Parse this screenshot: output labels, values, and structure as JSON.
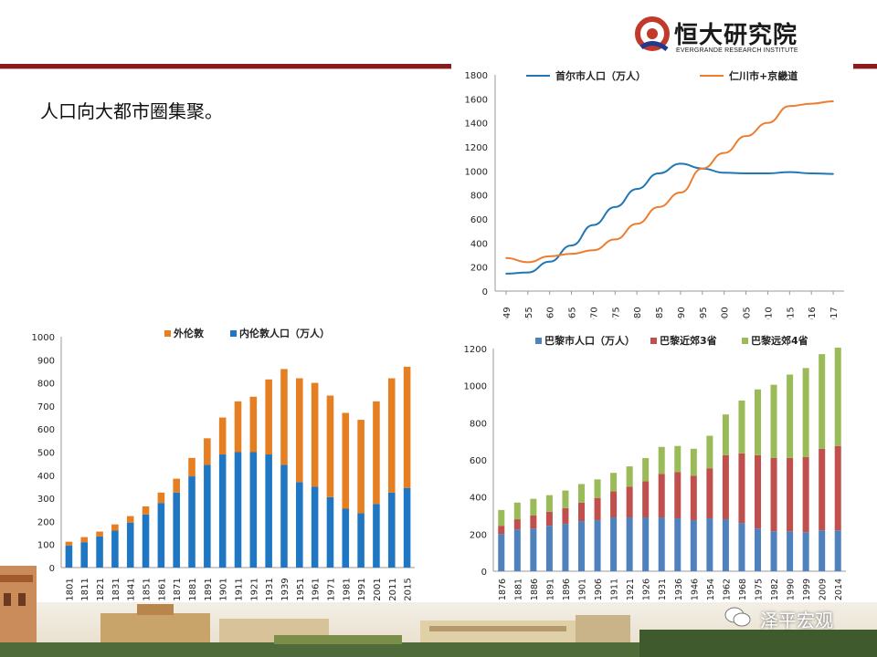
{
  "header": {
    "logo_cn": "恒大研究院",
    "logo_en": "EVERGRANDE RESEARCH INSTITUTE",
    "headline": "人口向大都市圈集聚。"
  },
  "colors": {
    "brand_red": "#8b1a1a",
    "blue": "#1f77b4",
    "orange": "#ed7d31",
    "bar_blue": "#1f77c3",
    "bar_orange": "#e67e22",
    "paris_blue": "#4f81bd",
    "paris_red": "#c0504d",
    "paris_green": "#9bbb59"
  },
  "watermark": {
    "text": "泽平宏观",
    "icon": "wechat-icon"
  },
  "chart_data": [
    {
      "id": "seoul",
      "type": "line",
      "x": [
        "1949",
        "1955",
        "1960",
        "1965",
        "1970",
        "1975",
        "1980",
        "1985",
        "1990",
        "1995",
        "2000",
        "2005",
        "2010",
        "2015",
        "2016",
        "2017"
      ],
      "ylim": [
        0,
        1800
      ],
      "yticks": [
        0,
        200,
        400,
        600,
        800,
        1000,
        1200,
        1400,
        1600,
        1800
      ],
      "legend": "top",
      "series": [
        {
          "name": "首尔市人口（万人）",
          "color": "#1f77b4",
          "values": [
            145,
            155,
            245,
            380,
            550,
            700,
            850,
            980,
            1060,
            1020,
            985,
            980,
            980,
            990,
            980,
            975
          ]
        },
        {
          "name": "仁川市+京畿道",
          "color": "#ed7d31",
          "values": [
            275,
            240,
            290,
            310,
            340,
            430,
            560,
            700,
            820,
            1020,
            1150,
            1290,
            1400,
            1540,
            1560,
            1580
          ]
        }
      ]
    },
    {
      "id": "london",
      "type": "bar",
      "stacked": true,
      "categories": [
        "1801",
        "1811",
        "1821",
        "1831",
        "1841",
        "1851",
        "1861",
        "1871",
        "1881",
        "1891",
        "1901",
        "1911",
        "1921",
        "1931",
        "1939",
        "1951",
        "1961",
        "1971",
        "1981",
        "1991",
        "2001",
        "2011",
        "2015"
      ],
      "ylim": [
        0,
        1000
      ],
      "yticks": [
        0,
        100,
        200,
        300,
        400,
        500,
        600,
        700,
        800,
        900,
        1000
      ],
      "legend": "top",
      "series": [
        {
          "name": "内伦敦人口（万人）",
          "color": "#1f77c3",
          "values": [
            96,
            110,
            135,
            160,
            195,
            230,
            280,
            325,
            395,
            445,
            490,
            500,
            500,
            490,
            445,
            370,
            350,
            305,
            255,
            235,
            275,
            325,
            345
          ]
        },
        {
          "name": "外伦敦",
          "color": "#e67e22",
          "values": [
            16,
            22,
            21,
            27,
            28,
            35,
            45,
            60,
            80,
            115,
            160,
            220,
            240,
            325,
            415,
            450,
            450,
            440,
            415,
            405,
            445,
            495,
            525
          ]
        }
      ]
    },
    {
      "id": "paris",
      "type": "bar",
      "stacked": true,
      "categories": [
        "1876",
        "1881",
        "1886",
        "1891",
        "1896",
        "1901",
        "1906",
        "1911",
        "1921",
        "1926",
        "1931",
        "1936",
        "1946",
        "1954",
        "1962",
        "1968",
        "1975",
        "1982",
        "1990",
        "1999",
        "2009",
        "2014"
      ],
      "ylim": [
        0,
        1200
      ],
      "yticks": [
        0,
        200,
        400,
        600,
        800,
        1000,
        1200
      ],
      "legend": "top",
      "series": [
        {
          "name": "巴黎市人口（万人）",
          "color": "#4f81bd",
          "values": [
            200,
            225,
            230,
            245,
            255,
            270,
            275,
            290,
            290,
            290,
            290,
            285,
            275,
            285,
            280,
            260,
            230,
            215,
            215,
            210,
            220,
            220
          ]
        },
        {
          "name": "巴黎近郊3省",
          "color": "#c0504d",
          "values": [
            45,
            55,
            70,
            75,
            85,
            100,
            120,
            140,
            165,
            195,
            235,
            250,
            240,
            270,
            345,
            375,
            395,
            395,
            395,
            405,
            440,
            455
          ]
        },
        {
          "name": "巴黎远郊4省",
          "color": "#9bbb59",
          "values": [
            85,
            90,
            90,
            90,
            95,
            100,
            100,
            100,
            110,
            125,
            145,
            140,
            145,
            175,
            220,
            285,
            355,
            395,
            450,
            480,
            510,
            530
          ]
        }
      ]
    }
  ]
}
